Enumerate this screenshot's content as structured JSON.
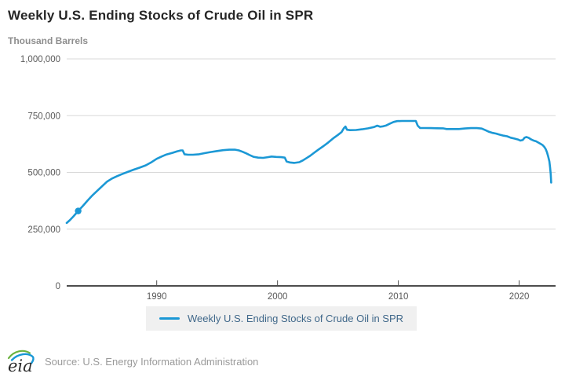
{
  "header": {
    "title": "Weekly U.S. Ending Stocks of Crude Oil in SPR",
    "subtitle": "Thousand Barrels"
  },
  "legend": {
    "label": "Weekly U.S. Ending Stocks of Crude Oil in SPR"
  },
  "footer": {
    "logo_text": "eia",
    "source": "Source: U.S. Energy Information Administration"
  },
  "colors": {
    "line": "#1b98d5",
    "grid": "#d9d9d9",
    "axis": "#4d4d4d",
    "tick_text": "#595959",
    "legend_bg": "#f0f0f0",
    "logo_green": "#6cb33f",
    "logo_blue": "#1b98d5",
    "logo_text": "#2b2b2b"
  },
  "chart_data": {
    "type": "line",
    "title": "Weekly U.S. Ending Stocks of Crude Oil in SPR",
    "xlabel": "",
    "ylabel": "Thousand Barrels",
    "x_range": [
      1982.55,
      2022.95
    ],
    "y_range": [
      0,
      1000000
    ],
    "grid": true,
    "legend_position": "bottom",
    "x_ticks": [
      {
        "value": 1990,
        "label": "1990"
      },
      {
        "value": 2000,
        "label": "2000"
      },
      {
        "value": 2010,
        "label": "2010"
      },
      {
        "value": 2020,
        "label": "2020"
      }
    ],
    "y_ticks": [
      {
        "value": 0,
        "label": "0"
      },
      {
        "value": 250000,
        "label": "250,000"
      },
      {
        "value": 500000,
        "label": "500,000"
      },
      {
        "value": 750000,
        "label": "750,000"
      },
      {
        "value": 1000000,
        "label": "1,000,000"
      }
    ],
    "marker_point": [
      1983.5,
      330000
    ],
    "series": [
      {
        "name": "Weekly U.S. Ending Stocks of Crude Oil in SPR",
        "color": "#1b98d5",
        "points": [
          [
            1982.55,
            277000
          ],
          [
            1982.8,
            289000
          ],
          [
            1983.1,
            306000
          ],
          [
            1983.5,
            330000
          ],
          [
            1983.9,
            353000
          ],
          [
            1984.3,
            377000
          ],
          [
            1984.7,
            400000
          ],
          [
            1985.1,
            420000
          ],
          [
            1985.5,
            440000
          ],
          [
            1985.9,
            460000
          ],
          [
            1986.3,
            473000
          ],
          [
            1986.7,
            483000
          ],
          [
            1987.1,
            492000
          ],
          [
            1987.6,
            502000
          ],
          [
            1988.1,
            512000
          ],
          [
            1988.6,
            521000
          ],
          [
            1989.1,
            531000
          ],
          [
            1989.6,
            546000
          ],
          [
            1990.0,
            560000
          ],
          [
            1990.4,
            570000
          ],
          [
            1990.8,
            579000
          ],
          [
            1991.3,
            586000
          ],
          [
            1991.7,
            593000
          ],
          [
            1992.0,
            597000
          ],
          [
            1992.15,
            597000
          ],
          [
            1992.3,
            580000
          ],
          [
            1992.6,
            578000
          ],
          [
            1993.0,
            578000
          ],
          [
            1993.5,
            580000
          ],
          [
            1994.0,
            585000
          ],
          [
            1994.5,
            590000
          ],
          [
            1995.0,
            594000
          ],
          [
            1995.5,
            598000
          ],
          [
            1996.0,
            600000
          ],
          [
            1996.5,
            600000
          ],
          [
            1996.8,
            597000
          ],
          [
            1997.1,
            591000
          ],
          [
            1997.4,
            584000
          ],
          [
            1997.7,
            576000
          ],
          [
            1998.0,
            569000
          ],
          [
            1998.4,
            565000
          ],
          [
            1998.8,
            564000
          ],
          [
            1999.2,
            567000
          ],
          [
            1999.5,
            570000
          ],
          [
            1999.9,
            568000
          ],
          [
            2000.3,
            567000
          ],
          [
            2000.6,
            565000
          ],
          [
            2000.75,
            548000
          ],
          [
            2001.0,
            544000
          ],
          [
            2001.4,
            542000
          ],
          [
            2001.8,
            545000
          ],
          [
            2002.1,
            553000
          ],
          [
            2002.4,
            563000
          ],
          [
            2002.7,
            573000
          ],
          [
            2003.0,
            585000
          ],
          [
            2003.4,
            601000
          ],
          [
            2003.8,
            616000
          ],
          [
            2004.2,
            632000
          ],
          [
            2004.6,
            650000
          ],
          [
            2005.0,
            665000
          ],
          [
            2005.3,
            678000
          ],
          [
            2005.5,
            695000
          ],
          [
            2005.62,
            702000
          ],
          [
            2005.75,
            688000
          ],
          [
            2006.0,
            686000
          ],
          [
            2006.5,
            687000
          ],
          [
            2007.0,
            690000
          ],
          [
            2007.5,
            694000
          ],
          [
            2008.0,
            700000
          ],
          [
            2008.25,
            706000
          ],
          [
            2008.5,
            701000
          ],
          [
            2008.75,
            703000
          ],
          [
            2009.0,
            707000
          ],
          [
            2009.3,
            715000
          ],
          [
            2009.6,
            722000
          ],
          [
            2009.9,
            726000
          ],
          [
            2010.3,
            726500
          ],
          [
            2010.8,
            726500
          ],
          [
            2011.45,
            726500
          ],
          [
            2011.6,
            706000
          ],
          [
            2011.8,
            696000
          ],
          [
            2012.2,
            695500
          ],
          [
            2012.7,
            695000
          ],
          [
            2013.2,
            694500
          ],
          [
            2013.7,
            694000
          ],
          [
            2014.0,
            691000
          ],
          [
            2014.5,
            691000
          ],
          [
            2015.0,
            691000
          ],
          [
            2015.5,
            693500
          ],
          [
            2016.0,
            695000
          ],
          [
            2016.5,
            695000
          ],
          [
            2016.9,
            693000
          ],
          [
            2017.2,
            686000
          ],
          [
            2017.5,
            679000
          ],
          [
            2017.8,
            674000
          ],
          [
            2018.1,
            671000
          ],
          [
            2018.4,
            666000
          ],
          [
            2018.7,
            662000
          ],
          [
            2019.0,
            659000
          ],
          [
            2019.3,
            653000
          ],
          [
            2019.6,
            649000
          ],
          [
            2019.9,
            645000
          ],
          [
            2020.1,
            640000
          ],
          [
            2020.3,
            643000
          ],
          [
            2020.45,
            653000
          ],
          [
            2020.6,
            656000
          ],
          [
            2020.8,
            652000
          ],
          [
            2021.0,
            645000
          ],
          [
            2021.2,
            640000
          ],
          [
            2021.4,
            637000
          ],
          [
            2021.6,
            631000
          ],
          [
            2021.8,
            625000
          ],
          [
            2021.95,
            620000
          ],
          [
            2022.1,
            611000
          ],
          [
            2022.2,
            602000
          ],
          [
            2022.3,
            589000
          ],
          [
            2022.4,
            571000
          ],
          [
            2022.5,
            548000
          ],
          [
            2022.56,
            522000
          ],
          [
            2022.61,
            492000
          ],
          [
            2022.65,
            455000
          ]
        ]
      }
    ]
  }
}
